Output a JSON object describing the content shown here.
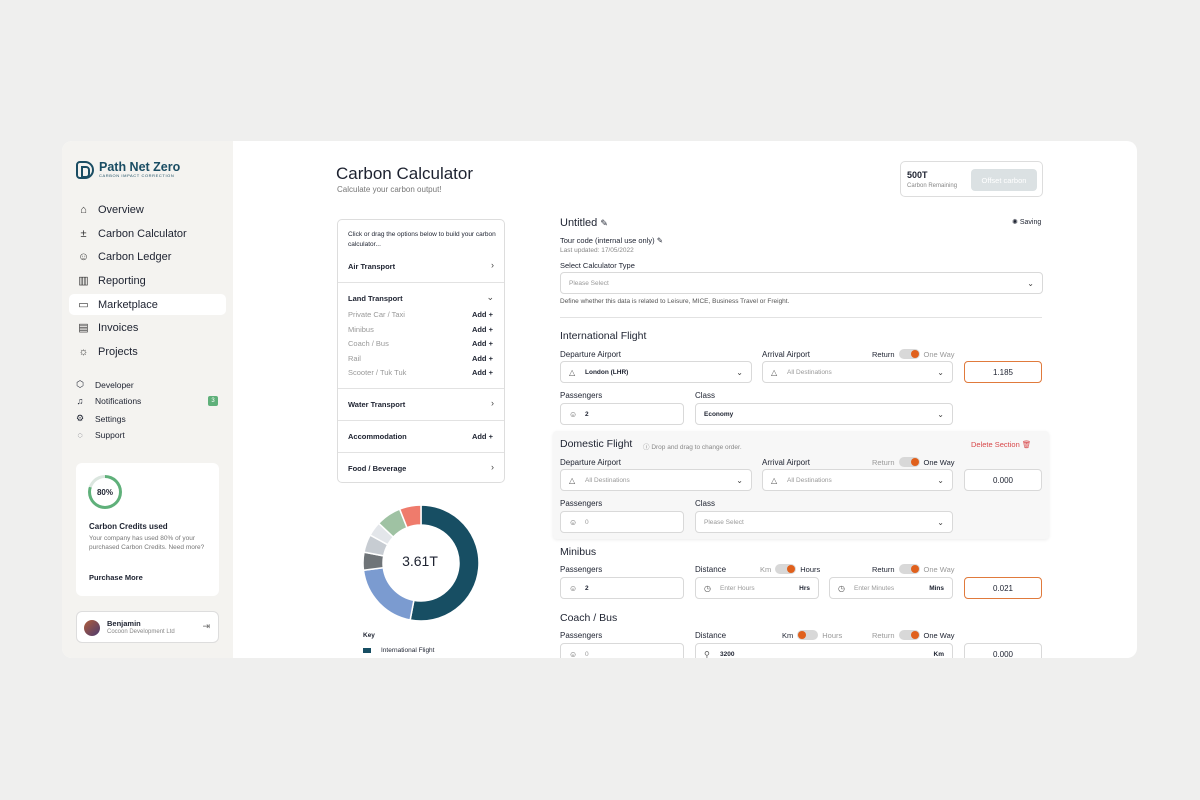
{
  "brand": {
    "name": "Path Net Zero",
    "tagline": "CARBON IMPACT CORRECTION"
  },
  "nav": [
    {
      "label": "Overview",
      "icon": "home-icon"
    },
    {
      "label": "Carbon Calculator",
      "icon": "calculator-icon"
    },
    {
      "label": "Carbon Ledger",
      "icon": "ledger-icon"
    },
    {
      "label": "Reporting",
      "icon": "bar-chart-icon"
    },
    {
      "label": "Marketplace",
      "icon": "marketplace-icon"
    },
    {
      "label": "Invoices",
      "icon": "invoice-icon"
    },
    {
      "label": "Projects",
      "icon": "sun-icon"
    }
  ],
  "subnav": [
    {
      "label": "Developer",
      "icon": "cube-icon"
    },
    {
      "label": "Notifications",
      "icon": "bell-icon",
      "badge": "3"
    },
    {
      "label": "Settings",
      "icon": "settings-icon"
    },
    {
      "label": "Support",
      "icon": "chat-icon"
    }
  ],
  "credits": {
    "percent": "80%",
    "percent_value": 0.8,
    "title": "Carbon Credits used",
    "text": "Your company has used 80% of your purchased Carbon Credits. Need more?",
    "link": "Purchase More"
  },
  "user": {
    "name": "Benjamin",
    "company": "Cocoon Development Ltd"
  },
  "header": {
    "title": "Carbon Calculator",
    "subtitle": "Calculate your carbon output!",
    "remaining_value": "500T",
    "remaining_label": "Carbon Remaining",
    "offset_button": "Offset carbon"
  },
  "options": {
    "intro": "Click or drag the options below to build your carbon calculator...",
    "air": "Air Transport",
    "land": "Land Transport",
    "land_items": [
      {
        "label": "Private Car / Taxi",
        "add": "Add"
      },
      {
        "label": "Minibus",
        "add": "Add"
      },
      {
        "label": "Coach / Bus",
        "add": "Add"
      },
      {
        "label": "Rail",
        "add": "Add"
      },
      {
        "label": "Scooter / Tuk Tuk",
        "add": "Add"
      }
    ],
    "water": "Water Transport",
    "accommodation": "Accommodation",
    "accommodation_add": "Add",
    "food": "Food / Beverage"
  },
  "chart_data": {
    "type": "pie",
    "center_label": "3.61T",
    "key_title": "Key",
    "slices": [
      {
        "name": "International Flight",
        "value": 53,
        "color": "#174e63"
      },
      {
        "value": 20,
        "color": "#7b9bd0"
      },
      {
        "value": 5,
        "color": "#6f7478"
      },
      {
        "value": 5,
        "color": "#c7ccd2"
      },
      {
        "value": 4,
        "color": "#e3e6ea"
      },
      {
        "value": 7,
        "color": "#9fc2a3"
      },
      {
        "value": 6,
        "color": "#ef7b6c"
      }
    ]
  },
  "form": {
    "title": "Untitled",
    "saving": "Saving",
    "tour_code": "Tour code (internal use only)",
    "last_updated": "Last updated: 17/05/2022",
    "type_label": "Select Calculator Type",
    "type_placeholder": "Please Select",
    "type_help": "Define whether this data is related to Leisure, MICE, Business Travel or Freight."
  },
  "labels": {
    "departure": "Departure Airport",
    "arrival": "Arrival Airport",
    "return": "Return",
    "one_way": "One Way",
    "passengers": "Passengers",
    "class": "Class",
    "distance": "Distance",
    "km": "Km",
    "hours": "Hours",
    "hrs": "Hrs",
    "mins": "Mins",
    "all_destinations": "All Destinations",
    "please_select": "Please Select",
    "enter_hours": "Enter Hours",
    "enter_minutes": "Enter Minutes"
  },
  "intl": {
    "title": "International Flight",
    "departure": "London (LHR)",
    "passengers": "2",
    "class": "Economy",
    "result": "1.185"
  },
  "domestic": {
    "title": "Domestic Flight",
    "drag_hint": "Drop and drag to change order.",
    "delete": "Delete Section",
    "passengers_placeholder": "0",
    "result": "0.000"
  },
  "minibus": {
    "title": "Minibus",
    "passengers": "2",
    "result": "0.021"
  },
  "coach": {
    "title": "Coach / Bus",
    "passengers_placeholder": "0",
    "distance": "3200",
    "result": "0.000"
  }
}
